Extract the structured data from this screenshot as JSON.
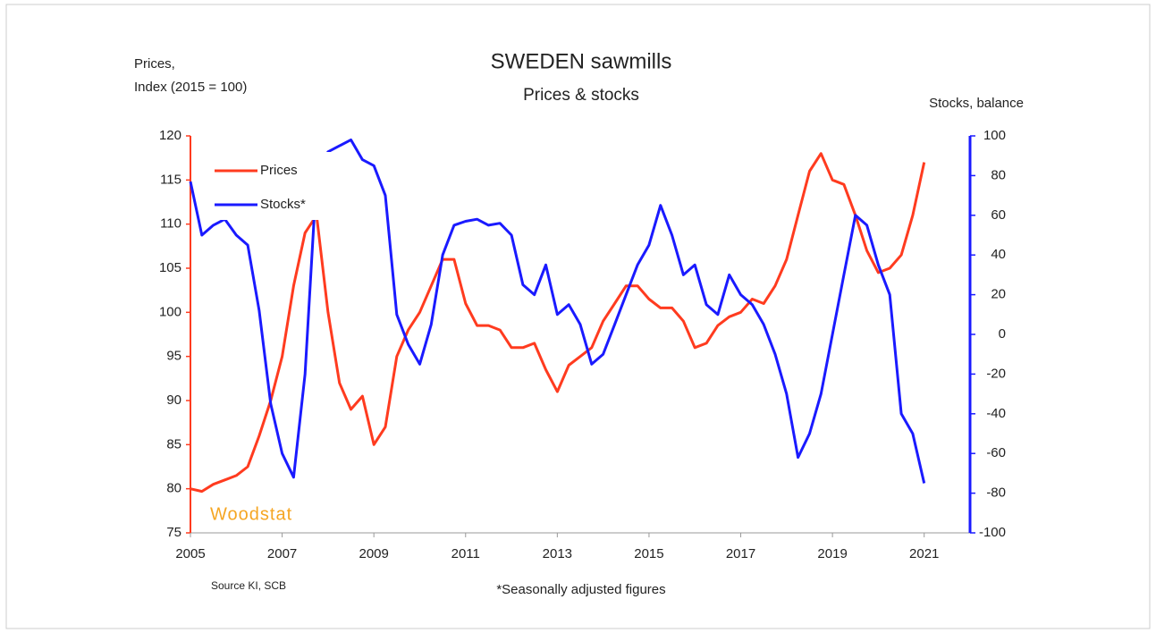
{
  "chart_data": {
    "type": "line",
    "title": "SWEDEN sawmills",
    "subtitle": "Prices & stocks",
    "ylabel": [
      "Prices,",
      "Index (2015 = 100)"
    ],
    "y2label": "Stocks, balance",
    "annotations": [
      "Woodstat",
      "Source KI, SCB",
      "*Seasonally adjusted figures"
    ],
    "x": [
      2005,
      2005.25,
      2005.5,
      2005.75,
      2006,
      2006.25,
      2006.5,
      2006.75,
      2007,
      2007.25,
      2007.5,
      2007.75,
      2008,
      2008.25,
      2008.5,
      2008.75,
      2009,
      2009.25,
      2009.5,
      2009.75,
      2010,
      2010.25,
      2010.5,
      2010.75,
      2011,
      2011.25,
      2011.5,
      2011.75,
      2012,
      2012.25,
      2012.5,
      2012.75,
      2013,
      2013.25,
      2013.5,
      2013.75,
      2014,
      2014.25,
      2014.5,
      2014.75,
      2015,
      2015.25,
      2015.5,
      2015.75,
      2016,
      2016.25,
      2016.5,
      2016.75,
      2017,
      2017.25,
      2017.5,
      2017.75,
      2018,
      2018.25,
      2018.5,
      2018.75,
      2019,
      2019.25,
      2019.5,
      2019.75,
      2020,
      2020.25,
      2020.5,
      2020.75,
      2021
    ],
    "series": [
      {
        "name": "Prices",
        "color": "#ff3b1f",
        "values": [
          80,
          79.7,
          80.5,
          81,
          81.5,
          82.5,
          86,
          90,
          95,
          103,
          109,
          111,
          100,
          92,
          89,
          90.5,
          85,
          87,
          95,
          98,
          100,
          103,
          106,
          106,
          101,
          98.5,
          98.5,
          98,
          96,
          96,
          96.5,
          93.5,
          91,
          94,
          95,
          96,
          99,
          101,
          103,
          103,
          101.5,
          100.5,
          100.5,
          99,
          96,
          96.5,
          98.5,
          99.5,
          100,
          101.5,
          101,
          103,
          106,
          111,
          116,
          118,
          115,
          114.5,
          111,
          107,
          104.5,
          105,
          106.5,
          111,
          117
        ]
      },
      {
        "name": "Stocks*",
        "color": "#1a1aff",
        "axis": "y2",
        "values": [
          77,
          50,
          55,
          58,
          50,
          45,
          12,
          -35,
          -60,
          -72,
          -20,
          80,
          92,
          95,
          98,
          88,
          85,
          70,
          10,
          -5,
          -15,
          5,
          40,
          55,
          57,
          58,
          55,
          56,
          50,
          25,
          20,
          35,
          10,
          15,
          5,
          -15,
          -10,
          5,
          20,
          35,
          45,
          65,
          50,
          30,
          35,
          15,
          10,
          30,
          20,
          15,
          5,
          -10,
          -30,
          -62,
          -50,
          -30,
          0,
          30,
          60,
          55,
          35,
          20,
          -40,
          -50,
          -75
        ]
      }
    ],
    "xlim": [
      2005,
      2022
    ],
    "xticks": [
      2005,
      2007,
      2009,
      2011,
      2013,
      2015,
      2017,
      2019,
      2021
    ],
    "ylim": [
      75,
      120
    ],
    "yticks": [
      75,
      80,
      85,
      90,
      95,
      100,
      105,
      110,
      115,
      120
    ],
    "y2lim": [
      -100,
      100
    ],
    "y2ticks": [
      -100,
      -80,
      -60,
      -40,
      -20,
      0,
      20,
      40,
      60,
      80,
      100
    ],
    "legend": "upper left"
  }
}
